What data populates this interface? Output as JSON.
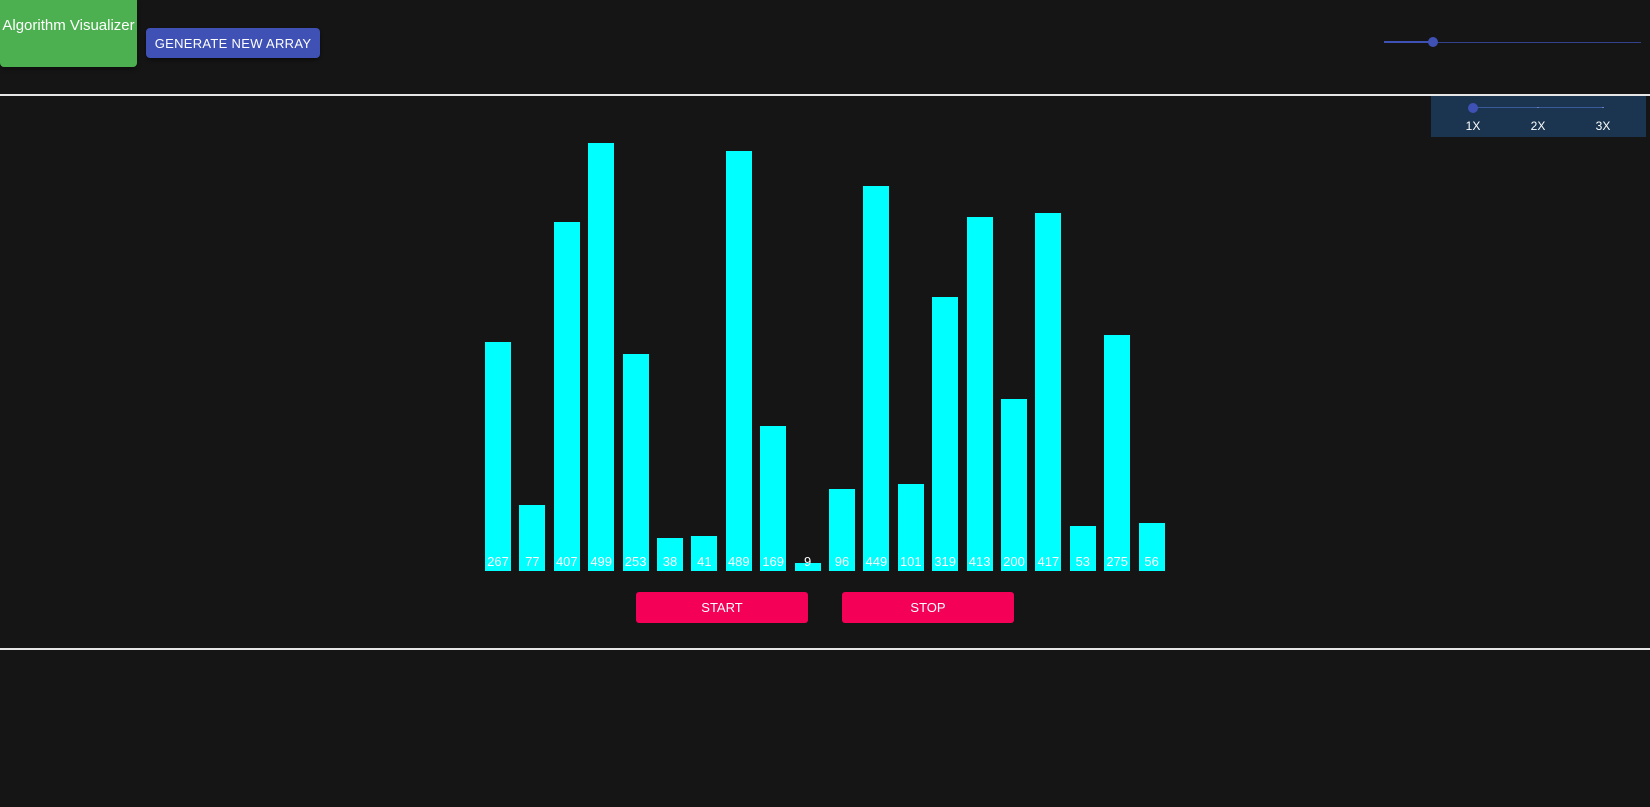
{
  "header": {
    "brand": "Algorithm Visualizer",
    "generate_label": "GENERATE NEW ARRAY",
    "accent_color": "#3f51b5",
    "brand_color": "#4caf50"
  },
  "size_slider": {
    "value_fraction": 0.19
  },
  "speed": {
    "marks": [
      "1X",
      "2X",
      "3X"
    ],
    "selected": "1X"
  },
  "array": {
    "bar_color": "#00ffff",
    "values": [
      267,
      77,
      407,
      499,
      253,
      38,
      41,
      489,
      169,
      9,
      96,
      449,
      101,
      319,
      413,
      200,
      417,
      53,
      275,
      56
    ]
  },
  "controls": {
    "start_label": "START",
    "stop_label": "STOP",
    "button_color": "#f50057"
  }
}
